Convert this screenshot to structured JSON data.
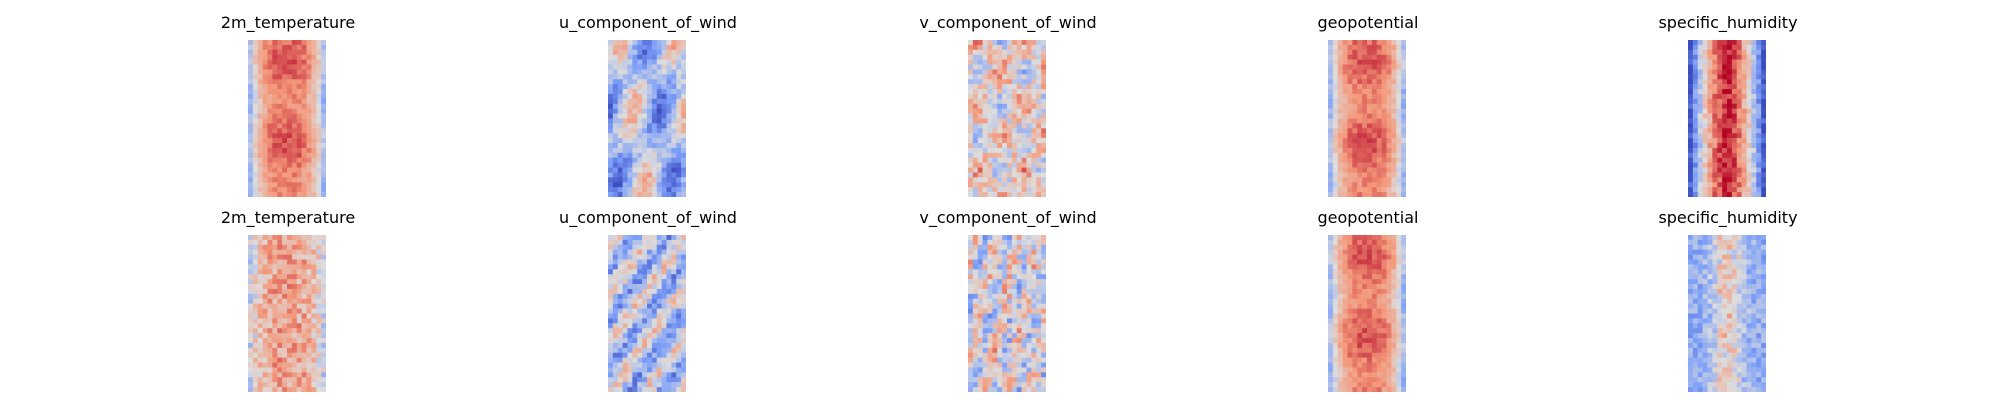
{
  "chart_data": {
    "type": "heatmap",
    "colormap": "coolwarm",
    "colorbar": "none",
    "axes": "hidden",
    "grid": false,
    "rows": [
      {
        "panels": [
          {
            "title": "2m_temperature",
            "pattern": "warm_core"
          },
          {
            "title": "u_component_of_wind",
            "pattern": "cool_banded"
          },
          {
            "title": "v_component_of_wind",
            "pattern": "mixed_noise"
          },
          {
            "title": "geopotential",
            "pattern": "warm_core"
          },
          {
            "title": "specific_humidity",
            "pattern": "warm_center_cold_edges"
          }
        ]
      },
      {
        "panels": [
          {
            "title": "2m_temperature",
            "pattern": "warm_mottled"
          },
          {
            "title": "u_component_of_wind",
            "pattern": "cool_noise"
          },
          {
            "title": "v_component_of_wind",
            "pattern": "mixed_noise_fine"
          },
          {
            "title": "geopotential",
            "pattern": "warm_core"
          },
          {
            "title": "specific_humidity",
            "pattern": "cool_noise_warm_streak"
          }
        ]
      }
    ]
  }
}
